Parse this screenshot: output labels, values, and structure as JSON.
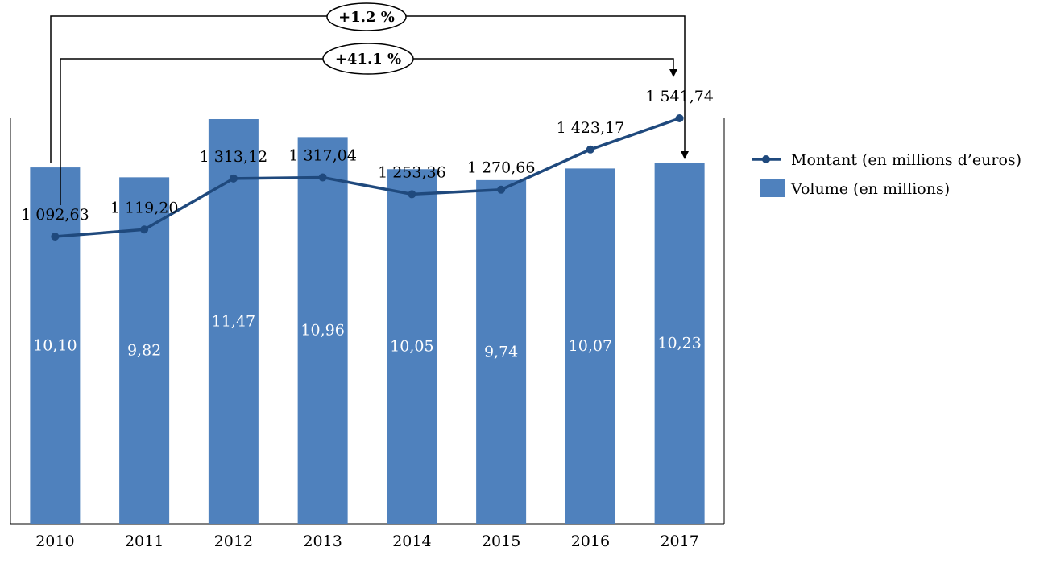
{
  "chart_data": {
    "type": "bar",
    "categories": [
      "2010",
      "2011",
      "2012",
      "2013",
      "2014",
      "2015",
      "2016",
      "2017"
    ],
    "series": [
      {
        "name": "Volume (en millions)",
        "type": "bar",
        "values": [
          10.1,
          9.82,
          11.47,
          10.96,
          10.05,
          9.74,
          10.07,
          10.23
        ],
        "labels": [
          "10,10",
          "9,82",
          "11,47",
          "10,96",
          "10,05",
          "9,74",
          "10,07",
          "10,23"
        ],
        "color": "#4f81bd"
      },
      {
        "name": "Montant (en millions d’euros)",
        "type": "line",
        "values": [
          1092.63,
          1119.2,
          1313.12,
          1317.04,
          1253.36,
          1270.66,
          1423.17,
          1541.74
        ],
        "labels": [
          "1 092,63",
          "1 119,20",
          "1 313,12",
          "1 317,04",
          "1 253,36",
          "1 270,66",
          "1 423,17",
          "1 541,74"
        ],
        "color": "#1f497d"
      }
    ],
    "annotations": [
      {
        "text": "+1.2 %",
        "from": "2010",
        "to": "2017",
        "series": "Volume (en millions)"
      },
      {
        "text": "+41.1 %",
        "from": "2010",
        "to": "2017",
        "series": "Montant (en millions d’euros)"
      }
    ],
    "legend_position": "right",
    "grid": false
  }
}
